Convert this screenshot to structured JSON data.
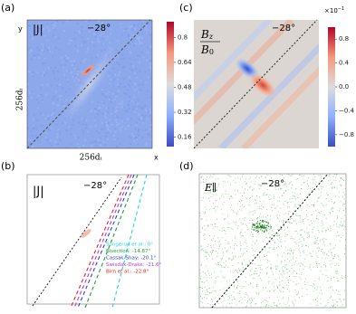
{
  "chart_data": [
    {
      "type": "heatmap",
      "panel": "(a)",
      "title": "|J|",
      "annotation": "−28°",
      "xlabel": "256dᵢ",
      "ylabel": "256dᵢ",
      "x_axis": "x",
      "y_axis": "y",
      "colormap": [
        "#3b4cc0",
        "#8db0fe",
        "#dddcdc",
        "#f4987a",
        "#b40426"
      ],
      "clim": [
        0.1,
        0.9
      ],
      "cticks": [
        0.16,
        0.32,
        0.48,
        0.64,
        0.8
      ]
    },
    {
      "type": "heatmap",
      "panel": "(c)",
      "title_numerator": "B",
      "title_numerator_sub": "z",
      "title_denominator": "B",
      "title_denominator_sub": "0",
      "annotation": "−28°",
      "colormap": [
        "#3b4cc0",
        "#8db0fe",
        "#dddcdc",
        "#f4987a",
        "#b40426"
      ],
      "clim": [
        -1,
        1
      ],
      "cticks": [
        {
          "value": -0.8,
          "label": "−0.8"
        },
        {
          "value": -0.4,
          "label": "−0.4"
        },
        {
          "value": 0,
          "label": "0.0"
        },
        0.4,
        0.8
      ],
      "cscale_base": "×10",
      "cscale_exp": "−1"
    },
    {
      "type": "lines",
      "panel": "(b)",
      "title": "|J|",
      "annotation": "−28°",
      "series": [
        {
          "name": "Songerup et al.: 0°",
          "color": "#22d3e6"
        },
        {
          "name": "Bisection: -14.87°",
          "color": "#1e9e3a"
        },
        {
          "name": "Cassak-Shay: -20.1°",
          "color": "#2a3fd0"
        },
        {
          "name": "Swisdak-Drake: -21.6°",
          "color": "#b03ad8"
        },
        {
          "name": "Birn et al.: -22.8°",
          "color": "#e82020"
        }
      ]
    },
    {
      "type": "scatter",
      "panel": "(d)",
      "title": "E∥",
      "annotation": "−28°",
      "color": "#2e9a2e"
    }
  ]
}
